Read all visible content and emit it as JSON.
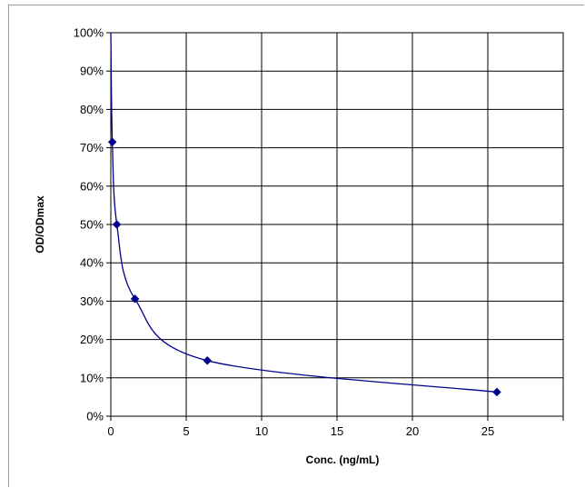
{
  "chart_data": {
    "type": "scatter",
    "title": "",
    "xlabel": "Conc. (ng/mL)",
    "ylabel": "OD/ODmax",
    "xlim": [
      0,
      30
    ],
    "ylim": [
      0,
      100
    ],
    "x_ticks": [
      0,
      5,
      10,
      15,
      20,
      25
    ],
    "y_ticks": [
      0,
      10,
      20,
      30,
      40,
      50,
      60,
      70,
      80,
      90,
      100
    ],
    "y_tick_labels": [
      "0%",
      "10%",
      "20%",
      "30%",
      "40%",
      "50%",
      "60%",
      "70%",
      "80%",
      "90%",
      "100%"
    ],
    "x_tick_labels": [
      "0",
      "5",
      "10",
      "15",
      "20",
      "25"
    ],
    "grid": true,
    "legend": "none",
    "series": [
      {
        "marker": "diamond",
        "color": "#00008B",
        "points": [
          {
            "x": 0.1,
            "y": 71.5
          },
          {
            "x": 0.4,
            "y": 50.0
          },
          {
            "x": 1.6,
            "y": 30.6
          },
          {
            "x": 6.4,
            "y": 14.5
          },
          {
            "x": 25.6,
            "y": 6.3
          }
        ]
      }
    ]
  }
}
